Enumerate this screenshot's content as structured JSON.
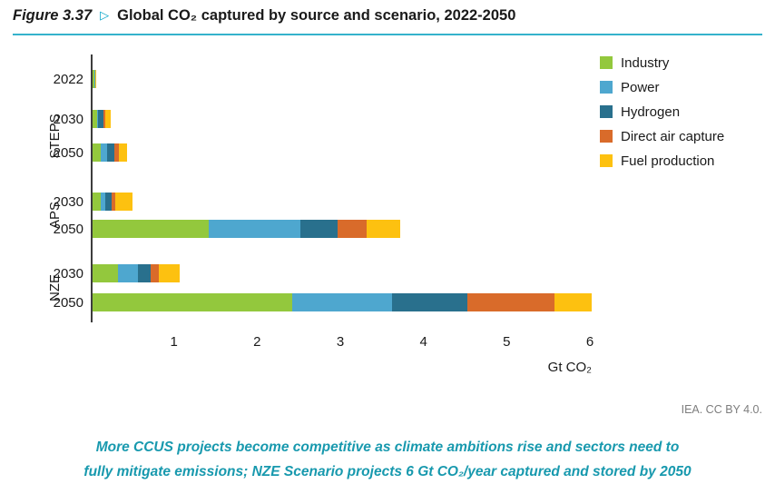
{
  "header": {
    "figure_label": "Figure 3.37",
    "title": "Global CO₂ captured by source and scenario, 2022-2050"
  },
  "chart_data": {
    "type": "bar",
    "orientation": "horizontal",
    "stacked": true,
    "title": "Global CO₂ captured by source and scenario, 2022-2050",
    "xlabel": "Gt CO₂",
    "xlim": [
      0,
      6
    ],
    "xticks": [
      1,
      2,
      3,
      4,
      5,
      6
    ],
    "legend_position": "top-right",
    "grid": false,
    "series": [
      "Industry",
      "Power",
      "Hydrogen",
      "Direct air capture",
      "Fuel production"
    ],
    "colors": [
      "#93c83d",
      "#4ea7cf",
      "#29708d",
      "#d96b2a",
      "#fdc110"
    ],
    "rows": [
      {
        "group": "",
        "year": "2022",
        "values": [
          0.025,
          0.005,
          0.003,
          0.002,
          0.012
        ]
      },
      {
        "group": "STEPS",
        "year": "2030",
        "values": [
          0.05,
          0.02,
          0.06,
          0.02,
          0.07
        ]
      },
      {
        "group": "STEPS",
        "year": "2050",
        "values": [
          0.1,
          0.07,
          0.09,
          0.06,
          0.1
        ]
      },
      {
        "group": "APS",
        "year": "2030",
        "values": [
          0.1,
          0.05,
          0.08,
          0.04,
          0.21
        ]
      },
      {
        "group": "APS",
        "year": "2050",
        "values": [
          1.4,
          1.1,
          0.45,
          0.35,
          0.4
        ]
      },
      {
        "group": "NZE",
        "year": "2030",
        "values": [
          0.3,
          0.25,
          0.15,
          0.1,
          0.25
        ]
      },
      {
        "group": "NZE",
        "year": "2050",
        "values": [
          2.4,
          1.2,
          0.9,
          1.05,
          0.45
        ]
      }
    ]
  },
  "footer": {
    "credit": "IEA. CC BY 4.0.",
    "caption_line1": "More CCUS projects become competitive as climate ambitions rise and sectors need to",
    "caption_line2": "fully mitigate emissions; NZE Scenario projects 6 Gt CO₂/year captured and stored by 2050"
  }
}
